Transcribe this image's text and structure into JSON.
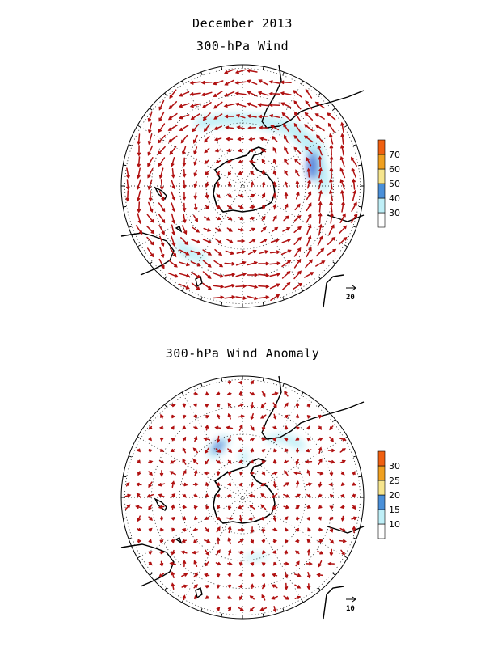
{
  "titles": {
    "main": "December 2013",
    "panel1": "300-hPa Wind",
    "panel2": "300-hPa Wind Anomaly"
  },
  "panels": [
    {
      "name": "wind",
      "reference_vector": "20",
      "colorbar": {
        "labels": [
          "30",
          "40",
          "50",
          "60",
          "70"
        ],
        "colors": [
          "#ffffff",
          "#bfeff7",
          "#4a90d9",
          "#f6e58d",
          "#f0a020",
          "#f06010"
        ]
      }
    },
    {
      "name": "anomaly",
      "reference_vector": "10",
      "colorbar": {
        "labels": [
          "10",
          "15",
          "20",
          "25",
          "30"
        ],
        "colors": [
          "#ffffff",
          "#bfeff7",
          "#4a90d9",
          "#f6e58d",
          "#f0a020",
          "#f06010"
        ]
      }
    }
  ],
  "colors": {
    "vector": "#b01010",
    "land_outline": "#000000",
    "light_shade": "#bfeff7",
    "dark_shade": "#4a78d8"
  }
}
